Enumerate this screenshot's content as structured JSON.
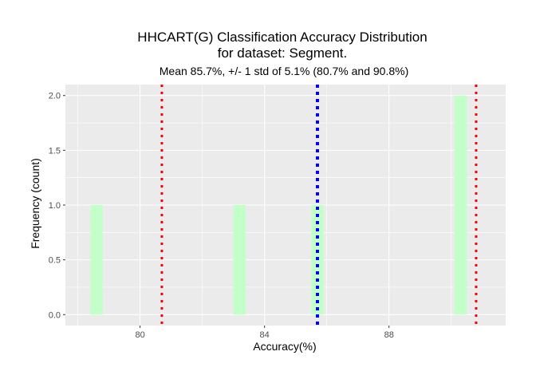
{
  "chart_data": {
    "type": "bar",
    "title_line1": "HHCART(G) Classification Accuracy Distribution",
    "title_line2": "for dataset: Segment.",
    "subtitle": "Mean 85.7%, +/- 1 std of 5.1% (80.7% and 90.8%)",
    "xlabel": "Accuracy(%)",
    "ylabel": "Frequency (count)",
    "xlim": [
      77.6,
      91.75
    ],
    "ylim": [
      -0.1,
      2.1
    ],
    "x_ticks": [
      80,
      84,
      88
    ],
    "x_tick_labels": [
      "80",
      "84",
      "88"
    ],
    "y_ticks": [
      0,
      0.5,
      1,
      1.5,
      2
    ],
    "y_tick_labels": [
      "0.0",
      "0.5",
      "1.0",
      "1.5",
      "2.0"
    ],
    "bin_width": 0.4,
    "bars": [
      {
        "x": 78.6,
        "count": 1
      },
      {
        "x": 83.2,
        "count": 1
      },
      {
        "x": 85.7,
        "count": 1
      },
      {
        "x": 90.3,
        "count": 2
      }
    ],
    "reference_lines": [
      {
        "name": "minus-1-std",
        "x": 80.7,
        "color": "#ff0000"
      },
      {
        "name": "mean",
        "x": 85.7,
        "color": "#0000ff"
      },
      {
        "name": "plus-1-std",
        "x": 90.8,
        "color": "#ff0000"
      }
    ],
    "bar_fill": "#c3ffc8",
    "panel_background": "#ebebeb",
    "grid_color": "#ffffff",
    "grid": true
  }
}
